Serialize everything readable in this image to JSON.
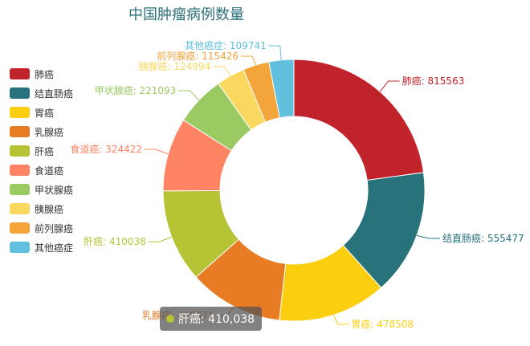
{
  "chart_data": {
    "type": "pie",
    "title": "中国肿瘤病例数量",
    "categories": [
      "肺癌",
      "结直肠癌",
      "胃癌",
      "乳腺癌",
      "肝癌",
      "食道癌",
      "甲状腺癌",
      "胰腺癌",
      "前列腺癌",
      "其他癌症"
    ],
    "values": [
      815563,
      555477,
      478508,
      416371,
      410038,
      324422,
      221093,
      124994,
      115426,
      109741
    ],
    "data_labels": [
      "肺癌: 815563",
      "结直肠癌: 555477",
      "胃癌: 478508",
      "乳腺癌: 416371",
      "肝癌: 410038",
      "食道癌: 324422",
      "甲状腺癌: 221093",
      "胰腺癌: 124994",
      "前列腺癌: 115426",
      "其他癌症: 109741"
    ],
    "colors": [
      "#c1232b",
      "#27727b",
      "#fcce10",
      "#e87c25",
      "#b5c334",
      "#fe8463",
      "#9bca63",
      "#fad860",
      "#f3a43b",
      "#60c0dd"
    ],
    "legend_placement": "left",
    "donut": true
  },
  "tooltip": {
    "category": "肝癌",
    "text": "肝癌: 410,038",
    "color": "#b5c334"
  }
}
